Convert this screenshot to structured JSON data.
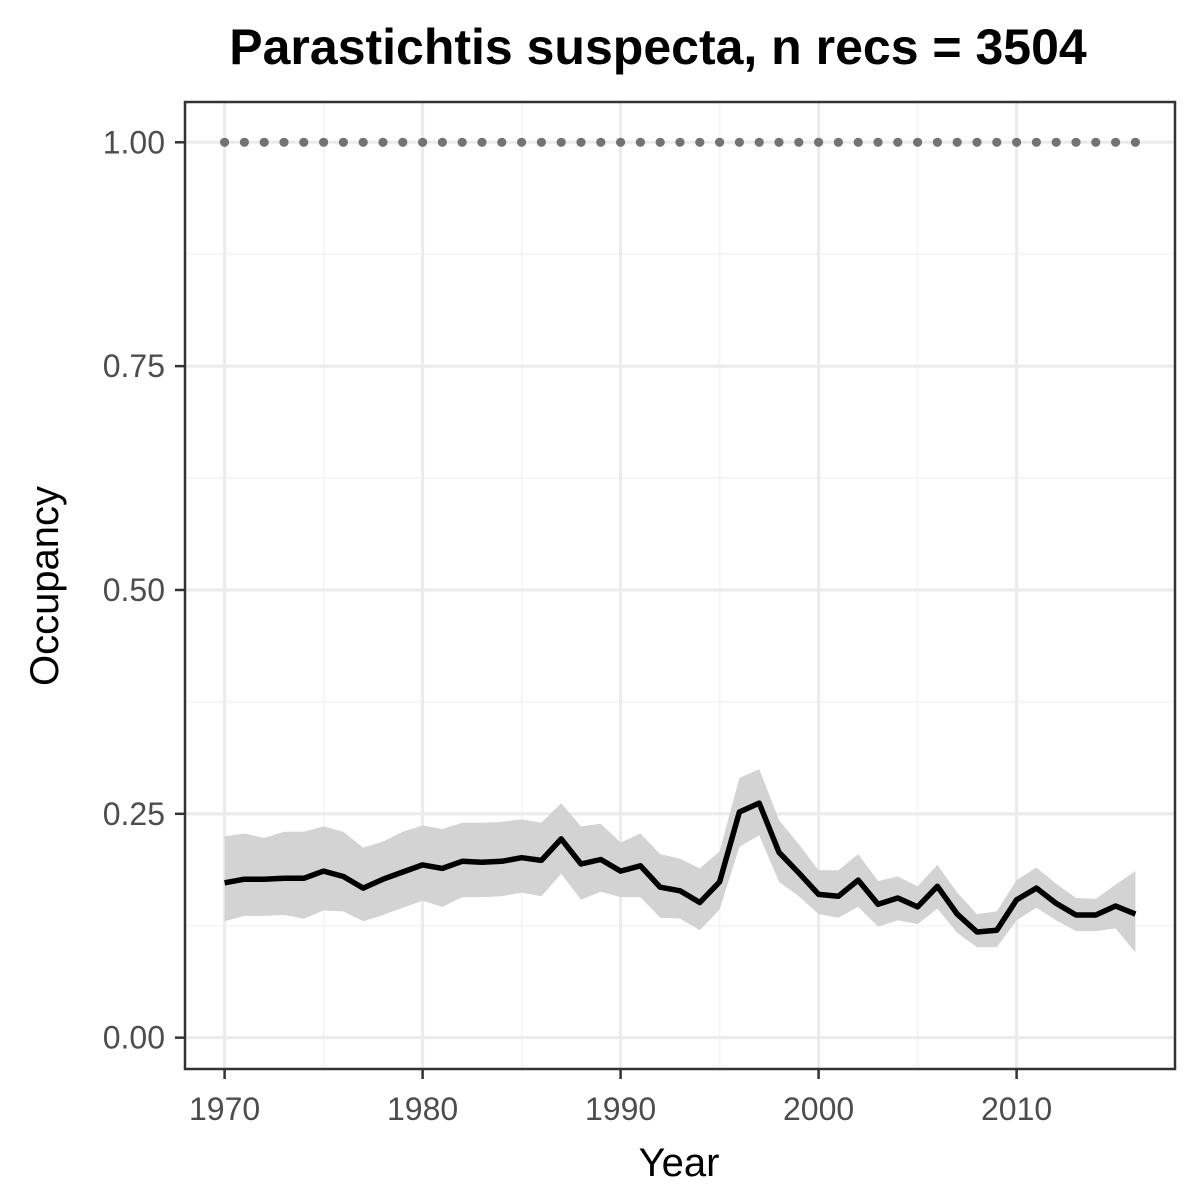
{
  "chart_data": {
    "type": "line",
    "title": "Parastichtis suspecta, n recs = 3504",
    "xlabel": "Year",
    "ylabel": "Occupancy",
    "xlim": [
      1968,
      2018
    ],
    "ylim": [
      -0.035,
      1.045
    ],
    "x_ticks": [
      1970,
      1980,
      1990,
      2000,
      2010
    ],
    "x_tick_labels": [
      "1970",
      "1980",
      "1990",
      "2000",
      "2010"
    ],
    "y_ticks": [
      0,
      0.25,
      0.5,
      0.75,
      1.0
    ],
    "y_tick_labels": [
      "0.00",
      "0.25",
      "0.50",
      "0.75",
      "1.00"
    ],
    "grid": true,
    "x": [
      1970,
      1971,
      1972,
      1973,
      1974,
      1975,
      1976,
      1977,
      1978,
      1979,
      1980,
      1981,
      1982,
      1983,
      1984,
      1985,
      1986,
      1987,
      1988,
      1989,
      1990,
      1991,
      1992,
      1993,
      1994,
      1995,
      1996,
      1997,
      1998,
      1999,
      2000,
      2001,
      2002,
      2003,
      2004,
      2005,
      2006,
      2007,
      2008,
      2009,
      2010,
      2011,
      2012,
      2013,
      2014,
      2015,
      2016
    ],
    "series": [
      {
        "values": [
          0.173,
          0.177,
          0.177,
          0.178,
          0.178,
          0.186,
          0.18,
          0.167,
          0.177,
          0.185,
          0.193,
          0.189,
          0.197,
          0.196,
          0.197,
          0.201,
          0.198,
          0.222,
          0.194,
          0.199,
          0.186,
          0.192,
          0.168,
          0.164,
          0.151,
          0.174,
          0.252,
          0.262,
          0.207,
          0.184,
          0.16,
          0.158,
          0.176,
          0.149,
          0.156,
          0.146,
          0.169,
          0.138,
          0.118,
          0.12,
          0.154,
          0.167,
          0.15,
          0.137,
          0.137,
          0.147,
          0.138
        ],
        "lower": [
          0.13,
          0.136,
          0.136,
          0.137,
          0.133,
          0.142,
          0.141,
          0.13,
          0.137,
          0.145,
          0.153,
          0.146,
          0.157,
          0.157,
          0.158,
          0.162,
          0.158,
          0.183,
          0.154,
          0.163,
          0.157,
          0.157,
          0.134,
          0.133,
          0.12,
          0.143,
          0.213,
          0.226,
          0.174,
          0.158,
          0.138,
          0.134,
          0.146,
          0.124,
          0.131,
          0.127,
          0.144,
          0.117,
          0.101,
          0.101,
          0.131,
          0.145,
          0.131,
          0.119,
          0.119,
          0.122,
          0.095
        ],
        "upper": [
          0.225,
          0.228,
          0.223,
          0.23,
          0.23,
          0.236,
          0.23,
          0.212,
          0.219,
          0.23,
          0.237,
          0.233,
          0.24,
          0.24,
          0.241,
          0.244,
          0.24,
          0.262,
          0.236,
          0.239,
          0.218,
          0.228,
          0.205,
          0.2,
          0.189,
          0.208,
          0.29,
          0.3,
          0.243,
          0.216,
          0.187,
          0.187,
          0.205,
          0.175,
          0.18,
          0.169,
          0.193,
          0.162,
          0.138,
          0.141,
          0.176,
          0.19,
          0.172,
          0.156,
          0.155,
          0.171,
          0.186
        ]
      },
      {
        "style": "dotted",
        "values": [
          1,
          1,
          1,
          1,
          1,
          1,
          1,
          1,
          1,
          1,
          1,
          1,
          1,
          1,
          1,
          1,
          1,
          1,
          1,
          1,
          1,
          1,
          1,
          1,
          1,
          1,
          1,
          1,
          1,
          1,
          1,
          1,
          1,
          1,
          1,
          1,
          1,
          1,
          1,
          1,
          1,
          1,
          1,
          1,
          1,
          1,
          1
        ]
      }
    ],
    "colors": {
      "line": "#000000",
      "ribbon": "#d3d3d3",
      "dots": "#737373",
      "grid_major": "#ebebeb",
      "grid_minor": "#f3f3f3",
      "panel_border": "#333333"
    }
  }
}
